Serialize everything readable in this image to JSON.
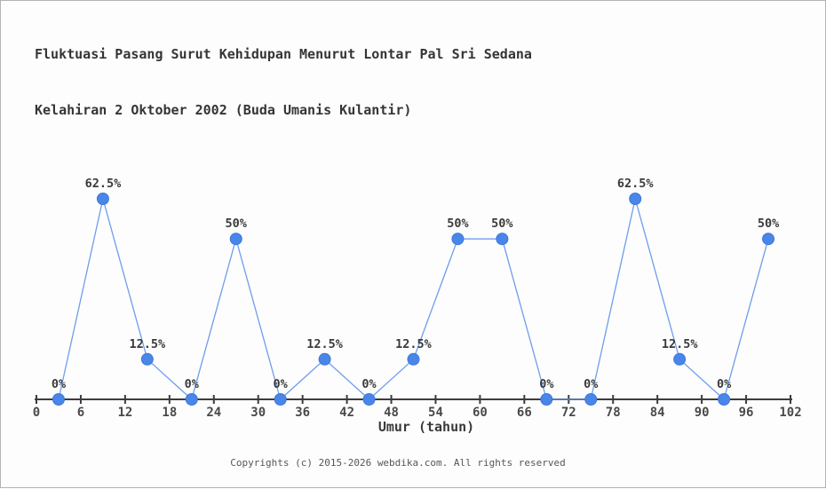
{
  "page": {
    "background": "#fdfdfd",
    "border_color": "#b3b3b3"
  },
  "chart_data": {
    "type": "line",
    "title_line1": "Fluktuasi Pasang Surut Kehidupan Menurut Lontar Pal Sri Sedana",
    "title_line2": "Kelahiran 2 Oktober 2002 (Buda Umanis Kulantir)",
    "xlabel": "Umur (tahun)",
    "ylabel": "",
    "x": [
      3,
      9,
      15,
      21,
      27,
      33,
      39,
      45,
      51,
      57,
      63,
      69,
      75,
      81,
      87,
      93,
      99
    ],
    "values": [
      0,
      62.5,
      12.5,
      0,
      50,
      0,
      12.5,
      0,
      12.5,
      50,
      50,
      0,
      0,
      62.5,
      12.5,
      0,
      50
    ],
    "point_labels": [
      "0%",
      "62.5%",
      "12.5%",
      "0%",
      "50%",
      "0%",
      "12.5%",
      "0%",
      "12.5%",
      "50%",
      "50%",
      "0%",
      "0%",
      "62.5%",
      "12.5%",
      "0%",
      "50%"
    ],
    "x_ticks": [
      0,
      6,
      12,
      18,
      24,
      30,
      36,
      42,
      48,
      54,
      60,
      66,
      72,
      78,
      84,
      90,
      96,
      102
    ],
    "xlim": [
      0,
      102
    ],
    "ylim": [
      0,
      100
    ],
    "grid": false,
    "legend": "none",
    "colors": {
      "line": "#6d9eeb",
      "marker_fill": "#4a86e8",
      "marker_edge": "#3b78dd",
      "axis": "#3c3c3c",
      "tick_label": "#4a4a4a",
      "point_label": "#3a3a3a"
    }
  },
  "footer": {
    "copyright": "Copyrights (c) 2015-2026 webdika.com. All rights reserved"
  }
}
